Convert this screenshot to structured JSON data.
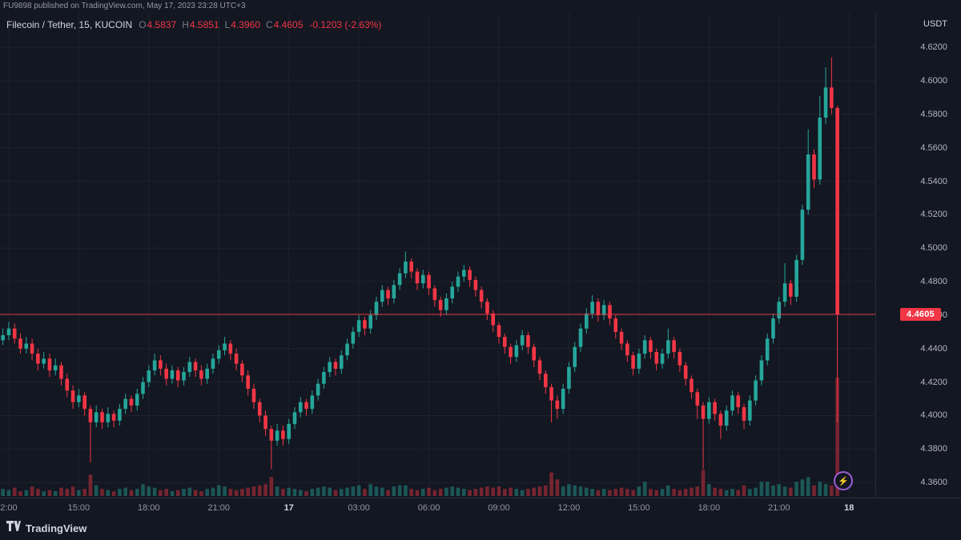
{
  "publish_bar": {
    "text": "FU9898 published on TradingView.com, May 17, 2023 23:28 UTC+3"
  },
  "legend": {
    "title": "Filecoin / Tether, 15, KUCOIN",
    "ohlc": [
      {
        "label": "O",
        "value": "4.5837"
      },
      {
        "label": "H",
        "value": "4.5851"
      },
      {
        "label": "L",
        "value": "4.3960"
      },
      {
        "label": "C",
        "value": "4.4605"
      }
    ],
    "change": "-0.1203 (-2.63%)"
  },
  "price_axis": {
    "currency": "USDT",
    "ticks": [
      "4.6200",
      "4.6000",
      "4.5800",
      "4.5600",
      "4.5400",
      "4.5200",
      "4.5000",
      "4.4800",
      "4.4600",
      "4.4400",
      "4.4200",
      "4.4000",
      "4.3800",
      "4.3600"
    ],
    "last_price": "4.4605",
    "last_price_value": 4.4605
  },
  "time_axis": {
    "labels": [
      {
        "text": "2:00",
        "index": 1,
        "day": false
      },
      {
        "text": "15:00",
        "index": 13,
        "day": false
      },
      {
        "text": "18:00",
        "index": 25,
        "day": false
      },
      {
        "text": "21:00",
        "index": 37,
        "day": false
      },
      {
        "text": "17",
        "index": 49,
        "day": true
      },
      {
        "text": "03:00",
        "index": 61,
        "day": false
      },
      {
        "text": "06:00",
        "index": 73,
        "day": false
      },
      {
        "text": "09:00",
        "index": 85,
        "day": false
      },
      {
        "text": "12:00",
        "index": 97,
        "day": false
      },
      {
        "text": "15:00",
        "index": 109,
        "day": false
      },
      {
        "text": "18:00",
        "index": 121,
        "day": false
      },
      {
        "text": "21:00",
        "index": 133,
        "day": false
      },
      {
        "text": "18",
        "index": 145,
        "day": true
      }
    ]
  },
  "footer": {
    "brand": "TradingView"
  },
  "flash_icon": "⚡",
  "colors": {
    "bg": "#131722",
    "grid": "#1e222d",
    "up": "#26a69a",
    "down": "#f23645",
    "axis_text": "#b2b5be",
    "bright_text": "#d1d4dc",
    "muted_text": "#9598a1",
    "badge_bg": "#f23645",
    "border": "#2a2e39",
    "flash_ring": "#9c5fd4"
  },
  "chart_data": {
    "type": "candlestick",
    "title": "Filecoin / Tether, 15, KUCOIN",
    "symbol": "Filecoin / Tether",
    "exchange": "KUCOIN",
    "interval": "15",
    "ylabel": "USDT",
    "price_min": 4.351,
    "price_max": 4.6406,
    "slots": 150,
    "last": {
      "open": 4.5837,
      "high": 4.5851,
      "low": 4.396,
      "close": 4.4605
    },
    "candles": [
      [
        4.445,
        4.452,
        4.442,
        4.448
      ],
      [
        4.448,
        4.456,
        4.445,
        4.452
      ],
      [
        4.452,
        4.455,
        4.443,
        4.446
      ],
      [
        4.446,
        4.449,
        4.437,
        4.44
      ],
      [
        4.44,
        4.447,
        4.437,
        4.443
      ],
      [
        4.443,
        4.446,
        4.433,
        4.437
      ],
      [
        4.437,
        4.44,
        4.427,
        4.431
      ],
      [
        4.431,
        4.438,
        4.428,
        4.434
      ],
      [
        4.434,
        4.437,
        4.423,
        4.427
      ],
      [
        4.427,
        4.434,
        4.424,
        4.43
      ],
      [
        4.43,
        4.432,
        4.418,
        4.422
      ],
      [
        4.422,
        4.425,
        4.411,
        4.415
      ],
      [
        4.415,
        4.418,
        4.404,
        4.408
      ],
      [
        4.408,
        4.416,
        4.405,
        4.412
      ],
      [
        4.412,
        4.414,
        4.4,
        4.404
      ],
      [
        4.404,
        4.406,
        4.372,
        4.396
      ],
      [
        4.396,
        4.406,
        4.393,
        4.402
      ],
      [
        4.402,
        4.404,
        4.392,
        4.396
      ],
      [
        4.396,
        4.405,
        4.393,
        4.401
      ],
      [
        4.401,
        4.403,
        4.393,
        4.397
      ],
      [
        4.397,
        4.407,
        4.394,
        4.404
      ],
      [
        4.404,
        4.413,
        4.401,
        4.41
      ],
      [
        4.41,
        4.412,
        4.402,
        4.406
      ],
      [
        4.406,
        4.416,
        4.403,
        4.413
      ],
      [
        4.413,
        4.423,
        4.41,
        4.42
      ],
      [
        4.42,
        4.43,
        4.417,
        4.427
      ],
      [
        4.427,
        4.437,
        4.424,
        4.433
      ],
      [
        4.433,
        4.436,
        4.424,
        4.428
      ],
      [
        4.428,
        4.431,
        4.418,
        4.422
      ],
      [
        4.422,
        4.43,
        4.419,
        4.427
      ],
      [
        4.427,
        4.429,
        4.417,
        4.421
      ],
      [
        4.421,
        4.429,
        4.418,
        4.426
      ],
      [
        4.426,
        4.435,
        4.423,
        4.432
      ],
      [
        4.432,
        4.434,
        4.423,
        4.427
      ],
      [
        4.427,
        4.43,
        4.418,
        4.422
      ],
      [
        4.422,
        4.431,
        4.419,
        4.428
      ],
      [
        4.428,
        4.437,
        4.425,
        4.434
      ],
      [
        4.434,
        4.442,
        4.431,
        4.439
      ],
      [
        4.439,
        4.447,
        4.436,
        4.443
      ],
      [
        4.443,
        4.445,
        4.433,
        4.437
      ],
      [
        4.437,
        4.44,
        4.427,
        4.431
      ],
      [
        4.431,
        4.433,
        4.42,
        4.424
      ],
      [
        4.424,
        4.427,
        4.412,
        4.416
      ],
      [
        4.416,
        4.419,
        4.404,
        4.408
      ],
      [
        4.408,
        4.41,
        4.396,
        4.4
      ],
      [
        4.4,
        4.403,
        4.388,
        4.392
      ],
      [
        4.392,
        4.394,
        4.368,
        4.385
      ],
      [
        4.385,
        4.395,
        4.382,
        4.391
      ],
      [
        4.391,
        4.394,
        4.382,
        4.386
      ],
      [
        4.386,
        4.398,
        4.383,
        4.395
      ],
      [
        4.395,
        4.405,
        4.392,
        4.402
      ],
      [
        4.402,
        4.411,
        4.399,
        4.408
      ],
      [
        4.408,
        4.41,
        4.4,
        4.404
      ],
      [
        4.404,
        4.415,
        4.401,
        4.412
      ],
      [
        4.412,
        4.422,
        4.409,
        4.419
      ],
      [
        4.419,
        4.429,
        4.416,
        4.426
      ],
      [
        4.426,
        4.435,
        4.423,
        4.432
      ],
      [
        4.432,
        4.434,
        4.424,
        4.428
      ],
      [
        4.428,
        4.439,
        4.425,
        4.436
      ],
      [
        4.436,
        4.446,
        4.433,
        4.443
      ],
      [
        4.443,
        4.453,
        4.44,
        4.45
      ],
      [
        4.45,
        4.46,
        4.447,
        4.457
      ],
      [
        4.457,
        4.459,
        4.448,
        4.452
      ],
      [
        4.452,
        4.463,
        4.449,
        4.46
      ],
      [
        4.46,
        4.471,
        4.457,
        4.468
      ],
      [
        4.468,
        4.478,
        4.465,
        4.475
      ],
      [
        4.475,
        4.477,
        4.466,
        4.47
      ],
      [
        4.47,
        4.481,
        4.467,
        4.478
      ],
      [
        4.478,
        4.488,
        4.475,
        4.485
      ],
      [
        4.485,
        4.498,
        4.482,
        4.492
      ],
      [
        4.492,
        4.494,
        4.482,
        4.486
      ],
      [
        4.486,
        4.488,
        4.475,
        4.479
      ],
      [
        4.479,
        4.487,
        4.476,
        4.484
      ],
      [
        4.484,
        4.486,
        4.472,
        4.476
      ],
      [
        4.476,
        4.478,
        4.465,
        4.469
      ],
      [
        4.469,
        4.471,
        4.459,
        4.463
      ],
      [
        4.463,
        4.473,
        4.46,
        4.47
      ],
      [
        4.47,
        4.48,
        4.467,
        4.477
      ],
      [
        4.477,
        4.486,
        4.474,
        4.483
      ],
      [
        4.483,
        4.49,
        4.48,
        4.487
      ],
      [
        4.487,
        4.489,
        4.477,
        4.481
      ],
      [
        4.481,
        4.483,
        4.471,
        4.475
      ],
      [
        4.475,
        4.477,
        4.464,
        4.468
      ],
      [
        4.468,
        4.47,
        4.457,
        4.461
      ],
      [
        4.461,
        4.463,
        4.45,
        4.454
      ],
      [
        4.454,
        4.456,
        4.443,
        4.447
      ],
      [
        4.447,
        4.449,
        4.437,
        4.441
      ],
      [
        4.441,
        4.443,
        4.431,
        4.435
      ],
      [
        4.435,
        4.445,
        4.432,
        4.442
      ],
      [
        4.442,
        4.451,
        4.439,
        4.448
      ],
      [
        4.448,
        4.45,
        4.437,
        4.441
      ],
      [
        4.441,
        4.443,
        4.429,
        4.433
      ],
      [
        4.433,
        4.435,
        4.421,
        4.425
      ],
      [
        4.425,
        4.427,
        4.413,
        4.417
      ],
      [
        4.417,
        4.419,
        4.396,
        4.409
      ],
      [
        4.409,
        4.412,
        4.398,
        4.404
      ],
      [
        4.404,
        4.419,
        4.401,
        4.416
      ],
      [
        4.416,
        4.432,
        4.413,
        4.429
      ],
      [
        4.429,
        4.444,
        4.426,
        4.441
      ],
      [
        4.441,
        4.455,
        4.438,
        4.452
      ],
      [
        4.452,
        4.464,
        4.449,
        4.461
      ],
      [
        4.461,
        4.472,
        4.458,
        4.468
      ],
      [
        4.468,
        4.47,
        4.456,
        4.46
      ],
      [
        4.46,
        4.469,
        4.457,
        4.466
      ],
      [
        4.466,
        4.468,
        4.454,
        4.458
      ],
      [
        4.458,
        4.46,
        4.446,
        4.45
      ],
      [
        4.45,
        4.452,
        4.439,
        4.443
      ],
      [
        4.443,
        4.445,
        4.432,
        4.436
      ],
      [
        4.436,
        4.438,
        4.424,
        4.428
      ],
      [
        4.428,
        4.44,
        4.425,
        4.437
      ],
      [
        4.437,
        4.448,
        4.434,
        4.445
      ],
      [
        4.445,
        4.447,
        4.434,
        4.438
      ],
      [
        4.438,
        4.44,
        4.427,
        4.431
      ],
      [
        4.431,
        4.44,
        4.428,
        4.437
      ],
      [
        4.437,
        4.452,
        4.434,
        4.445
      ],
      [
        4.445,
        4.447,
        4.434,
        4.438
      ],
      [
        4.438,
        4.44,
        4.426,
        4.43
      ],
      [
        4.43,
        4.432,
        4.418,
        4.422
      ],
      [
        4.422,
        4.424,
        4.41,
        4.414
      ],
      [
        4.414,
        4.416,
        4.398,
        4.406
      ],
      [
        4.406,
        4.408,
        4.368,
        4.398
      ],
      [
        4.398,
        4.411,
        4.395,
        4.408
      ],
      [
        4.408,
        4.41,
        4.397,
        4.401
      ],
      [
        4.401,
        4.403,
        4.386,
        4.394
      ],
      [
        4.394,
        4.406,
        4.391,
        4.403
      ],
      [
        4.403,
        4.415,
        4.4,
        4.412
      ],
      [
        4.412,
        4.414,
        4.401,
        4.405
      ],
      [
        4.405,
        4.407,
        4.392,
        4.397
      ],
      [
        4.397,
        4.412,
        4.394,
        4.409
      ],
      [
        4.409,
        4.424,
        4.406,
        4.421
      ],
      [
        4.421,
        4.436,
        4.418,
        4.433
      ],
      [
        4.433,
        4.449,
        4.43,
        4.446
      ],
      [
        4.446,
        4.461,
        4.443,
        4.458
      ],
      [
        4.458,
        4.471,
        4.455,
        4.468
      ],
      [
        4.468,
        4.491,
        4.465,
        4.479
      ],
      [
        4.479,
        4.481,
        4.466,
        4.471
      ],
      [
        4.471,
        4.496,
        4.468,
        4.493
      ],
      [
        4.493,
        4.526,
        4.49,
        4.523
      ],
      [
        4.523,
        4.571,
        4.52,
        4.556
      ],
      [
        4.556,
        4.559,
        4.536,
        4.541
      ],
      [
        4.541,
        4.591,
        4.538,
        4.578
      ],
      [
        4.578,
        4.608,
        4.574,
        4.596
      ],
      [
        4.596,
        4.614,
        4.58,
        4.5837
      ],
      [
        4.5837,
        4.5851,
        4.396,
        4.4605
      ]
    ],
    "volumes": [
      6,
      5,
      7,
      4,
      5,
      8,
      6,
      4,
      5,
      4,
      7,
      6,
      8,
      5,
      6,
      18,
      9,
      6,
      5,
      4,
      6,
      7,
      5,
      6,
      10,
      8,
      7,
      5,
      6,
      4,
      5,
      6,
      7,
      5,
      4,
      6,
      7,
      9,
      8,
      6,
      5,
      6,
      7,
      8,
      9,
      10,
      16,
      8,
      6,
      7,
      6,
      5,
      4,
      6,
      7,
      8,
      7,
      5,
      6,
      7,
      8,
      9,
      6,
      10,
      8,
      7,
      5,
      8,
      9,
      9,
      6,
      5,
      6,
      7,
      5,
      6,
      7,
      8,
      7,
      6,
      5,
      6,
      7,
      8,
      7,
      8,
      6,
      7,
      6,
      5,
      6,
      7,
      8,
      9,
      20,
      14,
      8,
      10,
      9,
      8,
      7,
      6,
      5,
      6,
      5,
      6,
      7,
      6,
      5,
      8,
      12,
      6,
      5,
      6,
      9,
      6,
      5,
      6,
      7,
      8,
      22,
      10,
      7,
      6,
      5,
      6,
      5,
      9,
      6,
      7,
      12,
      12,
      9,
      10,
      8,
      7,
      12,
      14,
      16,
      9,
      12,
      10,
      9,
      100
    ]
  }
}
